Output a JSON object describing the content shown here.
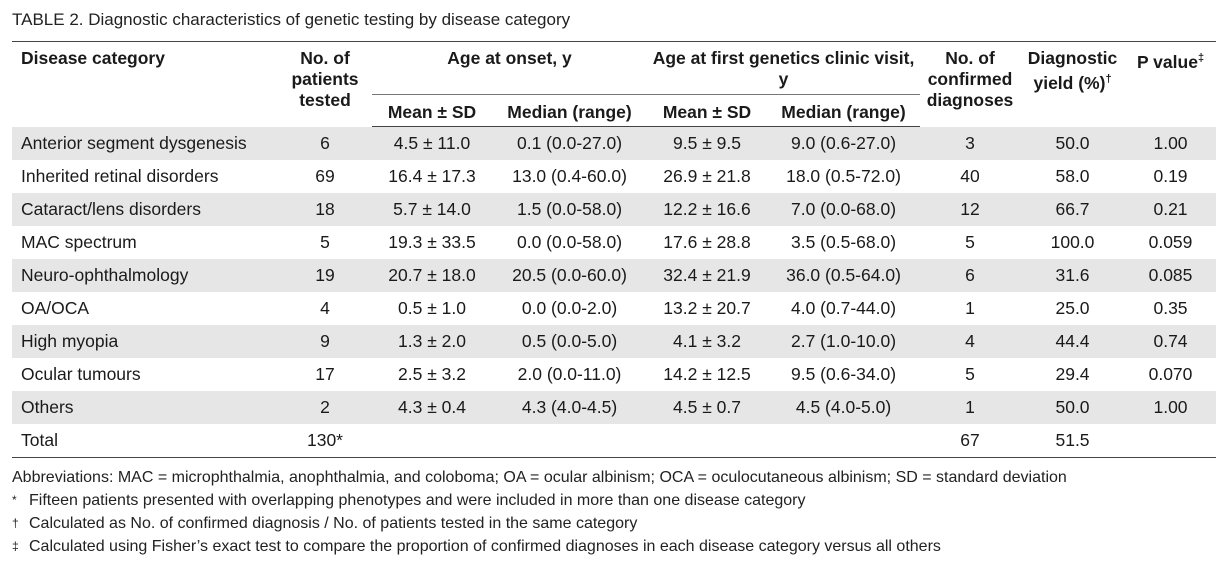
{
  "table": {
    "caption": "TABLE 2. Diagnostic characteristics of genetic testing by disease category",
    "headers": {
      "disease_category": "Disease category",
      "patients_tested": "No. of patients tested",
      "age_onset": "Age at onset, y",
      "age_first_visit": "Age at first genetics clinic visit, y",
      "confirmed": "No. of confirmed diagnoses",
      "yield": "Diagnostic yield (%)",
      "yield_mark": "†",
      "p_value": "P value",
      "p_value_mark": "‡",
      "mean_sd": "Mean ± SD",
      "median_range": "Median (range)"
    },
    "rows": [
      {
        "category": "Anterior segment dysgenesis",
        "tested": "6",
        "onset_mean": "4.5 ± 11.0",
        "onset_median": "0.1 (0.0-27.0)",
        "visit_mean": "9.5 ± 9.5",
        "visit_median": "9.0 (0.6-27.0)",
        "confirmed": "3",
        "yield": "50.0",
        "p": "1.00"
      },
      {
        "category": "Inherited retinal disorders",
        "tested": "69",
        "onset_mean": "16.4 ± 17.3",
        "onset_median": "13.0 (0.4-60.0)",
        "visit_mean": "26.9 ± 21.8",
        "visit_median": "18.0 (0.5-72.0)",
        "confirmed": "40",
        "yield": "58.0",
        "p": "0.19"
      },
      {
        "category": "Cataract/lens disorders",
        "tested": "18",
        "onset_mean": "5.7 ± 14.0",
        "onset_median": "1.5 (0.0-58.0)",
        "visit_mean": "12.2 ± 16.6",
        "visit_median": "7.0 (0.0-68.0)",
        "confirmed": "12",
        "yield": "66.7",
        "p": "0.21"
      },
      {
        "category": "MAC spectrum",
        "tested": "5",
        "onset_mean": "19.3 ± 33.5",
        "onset_median": "0.0 (0.0-58.0)",
        "visit_mean": "17.6 ± 28.8",
        "visit_median": "3.5 (0.5-68.0)",
        "confirmed": "5",
        "yield": "100.0",
        "p": "0.059"
      },
      {
        "category": "Neuro-ophthalmology",
        "tested": "19",
        "onset_mean": "20.7 ± 18.0",
        "onset_median": "20.5 (0.0-60.0)",
        "visit_mean": "32.4 ± 21.9",
        "visit_median": "36.0 (0.5-64.0)",
        "confirmed": "6",
        "yield": "31.6",
        "p": "0.085"
      },
      {
        "category": "OA/OCA",
        "tested": "4",
        "onset_mean": "0.5 ± 1.0",
        "onset_median": "0.0 (0.0-2.0)",
        "visit_mean": "13.2 ± 20.7",
        "visit_median": "4.0 (0.7-44.0)",
        "confirmed": "1",
        "yield": "25.0",
        "p": "0.35"
      },
      {
        "category": "High myopia",
        "tested": "9",
        "onset_mean": "1.3 ± 2.0",
        "onset_median": "0.5 (0.0-5.0)",
        "visit_mean": "4.1 ± 3.2",
        "visit_median": "2.7 (1.0-10.0)",
        "confirmed": "4",
        "yield": "44.4",
        "p": "0.74"
      },
      {
        "category": "Ocular tumours",
        "tested": "17",
        "onset_mean": "2.5 ± 3.2",
        "onset_median": "2.0 (0.0-11.0)",
        "visit_mean": "14.2 ± 12.5",
        "visit_median": "9.5 (0.6-34.0)",
        "confirmed": "5",
        "yield": "29.4",
        "p": "0.070"
      },
      {
        "category": "Others",
        "tested": "2",
        "onset_mean": "4.3 ± 0.4",
        "onset_median": "4.3 (4.0-4.5)",
        "visit_mean": "4.5 ± 0.7",
        "visit_median": "4.5 (4.0-5.0)",
        "confirmed": "1",
        "yield": "50.0",
        "p": "1.00"
      },
      {
        "category": "Total",
        "tested": "130*",
        "onset_mean": "",
        "onset_median": "",
        "visit_mean": "",
        "visit_median": "",
        "confirmed": "67",
        "yield": "51.5",
        "p": ""
      }
    ]
  },
  "footnotes": {
    "abbreviations": "Abbreviations: MAC = microphthalmia, anophthalmia, and coloboma; OA = ocular albinism; OCA = oculocutaneous albinism; SD = standard deviation",
    "items": [
      {
        "mark": "*",
        "text": "Fifteen patients presented with overlapping phenotypes and were included in more than one disease category"
      },
      {
        "mark": "†",
        "text": "Calculated as No. of confirmed diagnosis / No. of patients tested in the same category"
      },
      {
        "mark": "‡",
        "text": "Calculated using Fisher’s exact test to compare the proportion of confirmed diagnoses in each disease category versus all others"
      }
    ]
  },
  "colors": {
    "row_shade": "#e6e6e6",
    "rule": "#444444"
  }
}
